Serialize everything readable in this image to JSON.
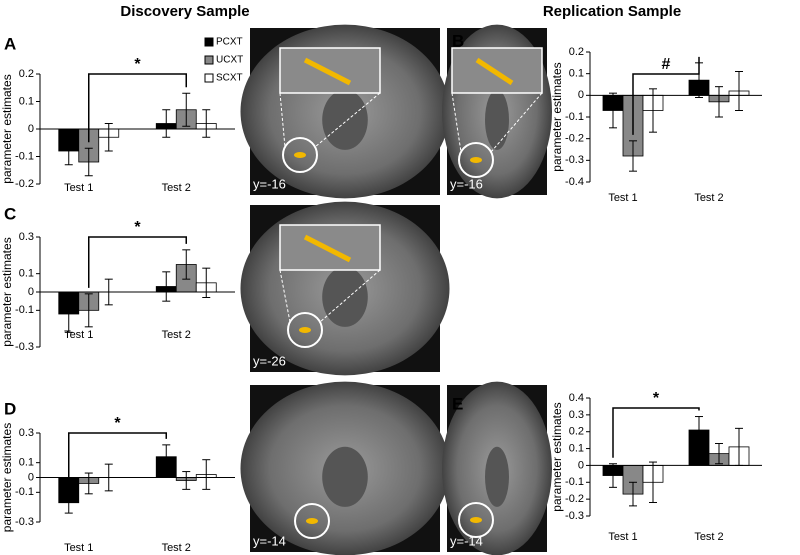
{
  "headers": [
    "Discovery Sample",
    "Replication Sample"
  ],
  "panel_labels": [
    "A",
    "B",
    "C",
    "D",
    "E"
  ],
  "image_labels": [
    "y=-16",
    "y=-16",
    "y=-26",
    "y=-14",
    "y=-14"
  ],
  "chart_data": [
    {
      "type": "bar",
      "ylabel": "parameter estimates",
      "categories": [
        "Test 1",
        "Test 2"
      ],
      "annotation": "*",
      "ylim": [
        -0.2,
        0.2
      ],
      "yticks": [
        0.2,
        0.1,
        0,
        -0.1,
        -0.2
      ],
      "series": [
        {
          "name": "PCXT",
          "color": "#000000",
          "values": [
            -0.08,
            0.02
          ],
          "errors": [
            0.05,
            0.05
          ]
        },
        {
          "name": "UCXT",
          "color": "#888888",
          "values": [
            -0.12,
            0.07
          ],
          "errors": [
            0.05,
            0.06
          ]
        },
        {
          "name": "SCXT",
          "color": "#ffffff",
          "values": [
            -0.03,
            0.02
          ],
          "errors": [
            0.05,
            0.05
          ]
        }
      ]
    },
    {
      "type": "bar",
      "ylabel": "parameter estimates",
      "categories": [
        "Test 1",
        "Test 2"
      ],
      "annotation": "#",
      "ylim": [
        -0.4,
        0.2
      ],
      "yticks": [
        0.2,
        0.1,
        0,
        -0.1,
        -0.2,
        -0.3,
        -0.4
      ],
      "series": [
        {
          "color": "#000000",
          "values": [
            -0.07,
            0.07
          ],
          "errors": [
            0.08,
            0.08
          ]
        },
        {
          "color": "#888888",
          "values": [
            -0.28,
            -0.03
          ],
          "errors": [
            0.07,
            0.07
          ]
        },
        {
          "color": "#ffffff",
          "values": [
            -0.07,
            0.02
          ],
          "errors": [
            0.1,
            0.09
          ]
        }
      ]
    },
    {
      "type": "bar",
      "ylabel": "parameter estimates",
      "categories": [
        "Test 1",
        "Test 2"
      ],
      "annotation": "*",
      "ylim": [
        -0.3,
        0.3
      ],
      "yticks": [
        0.3,
        0.1,
        0,
        -0.1,
        -0.3
      ],
      "series": [
        {
          "color": "#000000",
          "values": [
            -0.12,
            0.03
          ],
          "errors": [
            0.1,
            0.08
          ]
        },
        {
          "color": "#888888",
          "values": [
            -0.1,
            0.15
          ],
          "errors": [
            0.09,
            0.08
          ]
        },
        {
          "color": "#ffffff",
          "values": [
            0,
            0.05
          ],
          "errors": [
            0.07,
            0.08
          ]
        }
      ]
    },
    {
      "type": "bar",
      "ylabel": "parameter estimates",
      "categories": [
        "Test 1",
        "Test 2"
      ],
      "annotation": "*",
      "ylim": [
        -0.3,
        0.3
      ],
      "yticks": [
        0.3,
        0.1,
        0,
        -0.1,
        -0.3
      ],
      "series": [
        {
          "color": "#000000",
          "values": [
            -0.17,
            0.14
          ],
          "errors": [
            0.07,
            0.08
          ]
        },
        {
          "color": "#888888",
          "values": [
            -0.04,
            -0.02
          ],
          "errors": [
            0.07,
            0.06
          ]
        },
        {
          "color": "#ffffff",
          "values": [
            0,
            0.02
          ],
          "errors": [
            0.09,
            0.1
          ]
        }
      ]
    },
    {
      "type": "bar",
      "ylabel": "parameter estimates",
      "categories": [
        "Test 1",
        "Test 2"
      ],
      "annotation": "*",
      "ylim": [
        -0.3,
        0.4
      ],
      "yticks": [
        0.4,
        0.3,
        0.2,
        0.1,
        0,
        -0.1,
        -0.2,
        -0.3
      ],
      "series": [
        {
          "color": "#000000",
          "values": [
            -0.06,
            0.21
          ],
          "errors": [
            0.07,
            0.08
          ]
        },
        {
          "color": "#888888",
          "values": [
            -0.17,
            0.07
          ],
          "errors": [
            0.07,
            0.06
          ]
        },
        {
          "color": "#ffffff",
          "values": [
            -0.1,
            0.11
          ],
          "errors": [
            0.12,
            0.11
          ]
        }
      ]
    }
  ]
}
